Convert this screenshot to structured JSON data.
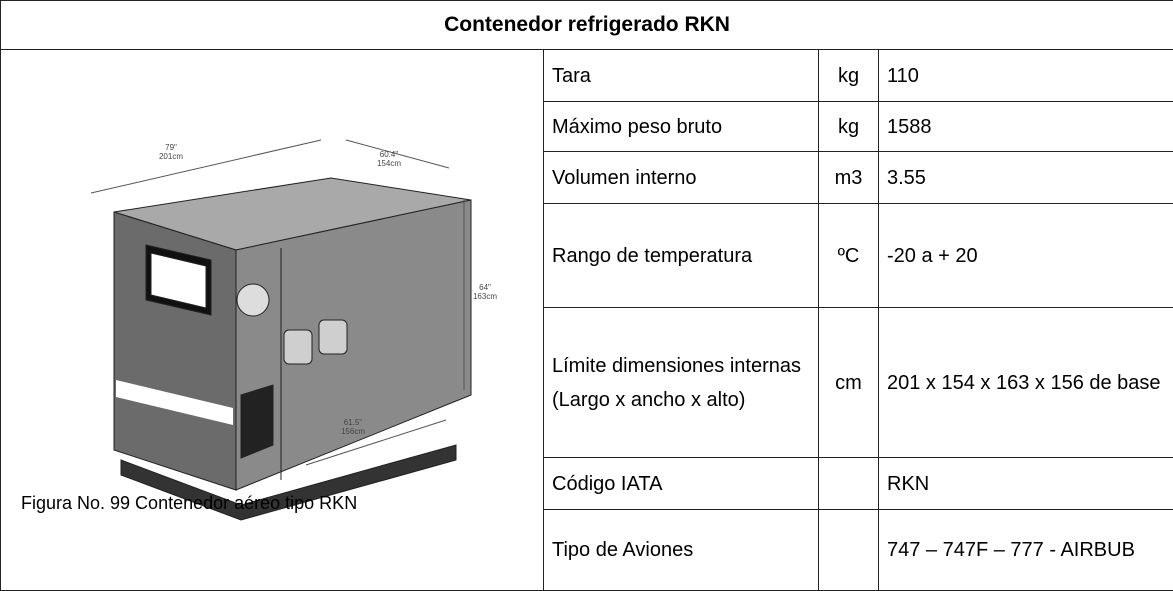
{
  "title": "Contenedor refrigerado RKN",
  "figure": {
    "caption": "Figura No. 99 Contenedor aéreo tipo RKN",
    "dimensions": [
      {
        "inches": "79\"",
        "cm": "201cm"
      },
      {
        "inches": "60.4\"",
        "cm": "154cm"
      },
      {
        "inches": "64\"",
        "cm": "163cm"
      },
      {
        "inches": "61.5\"",
        "cm": "156cm"
      }
    ]
  },
  "table": {
    "rows": [
      {
        "label": "Tara",
        "unit": "kg",
        "value": "110"
      },
      {
        "label": "Máximo peso bruto",
        "unit": "kg",
        "value": "1588"
      },
      {
        "label": "Volumen interno",
        "unit": "m3",
        "value": "3.55"
      },
      {
        "label": "Rango de temperatura",
        "unit": "ºC",
        "value": "-20 a + 20"
      },
      {
        "label": "Límite dimensiones internas\n(Largo x ancho x alto)",
        "unit": "cm",
        "value": "201 x 154 x 163 x 156 de base"
      },
      {
        "label": "Código IATA",
        "value": "RKN"
      },
      {
        "label": "Tipo de Aviones",
        "value": "747 – 747F – 777 - AIRBUB"
      }
    ]
  }
}
